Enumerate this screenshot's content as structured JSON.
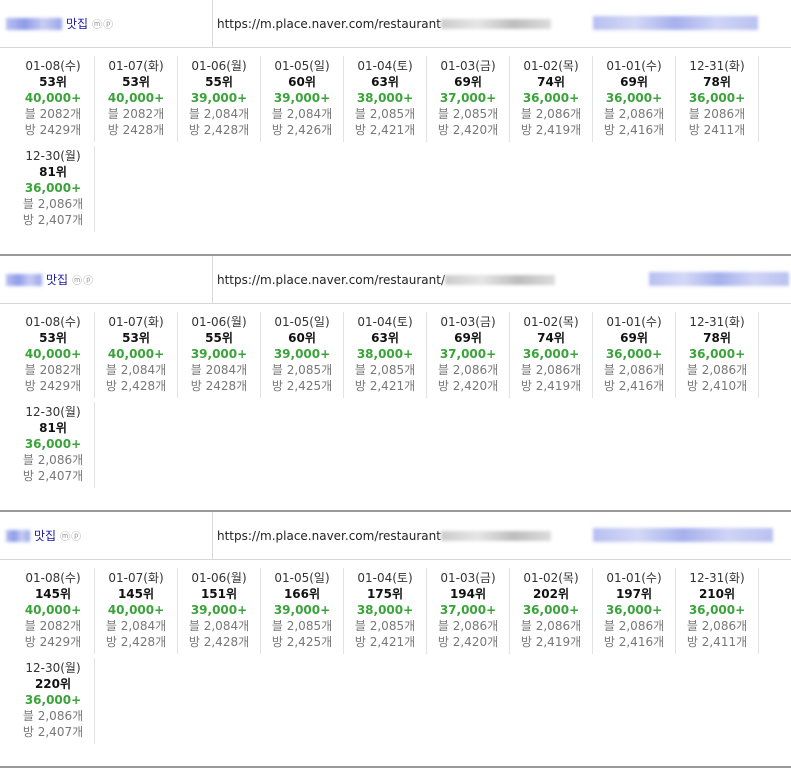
{
  "blocks": [
    {
      "keyword": "맛집",
      "icons": "ⓜⓟ",
      "url": "https://m.place.naver.com/restaurant",
      "days": [
        {
          "date": "01-08(수)",
          "rank": "53위",
          "rev": "40,000+",
          "blog": "블 2082개",
          "visit": "방 2429개"
        },
        {
          "date": "01-07(화)",
          "rank": "53위",
          "rev": "40,000+",
          "blog": "블 2082개",
          "visit": "방 2428개"
        },
        {
          "date": "01-06(월)",
          "rank": "55위",
          "rev": "39,000+",
          "blog": "블 2,084개",
          "visit": "방 2,428개"
        },
        {
          "date": "01-05(일)",
          "rank": "60위",
          "rev": "39,000+",
          "blog": "블 2,084개",
          "visit": "방 2,426개"
        },
        {
          "date": "01-04(토)",
          "rank": "63위",
          "rev": "38,000+",
          "blog": "블 2,085개",
          "visit": "방 2,421개"
        },
        {
          "date": "01-03(금)",
          "rank": "69위",
          "rev": "37,000+",
          "blog": "블 2,085개",
          "visit": "방 2,420개"
        },
        {
          "date": "01-02(목)",
          "rank": "74위",
          "rev": "36,000+",
          "blog": "블 2,086개",
          "visit": "방 2,419개"
        },
        {
          "date": "01-01(수)",
          "rank": "69위",
          "rev": "36,000+",
          "blog": "블 2,086개",
          "visit": "방 2,416개"
        },
        {
          "date": "12-31(화)",
          "rank": "78위",
          "rev": "36,000+",
          "blog": "블 2086개",
          "visit": "방 2411개"
        },
        {
          "date": "12-30(월)",
          "rank": "81위",
          "rev": "36,000+",
          "blog": "블 2,086개",
          "visit": "방 2,407개"
        }
      ]
    },
    {
      "keyword": "맛집",
      "icons": "ⓜⓟ",
      "url": "https://m.place.naver.com/restaurant/",
      "days": [
        {
          "date": "01-08(수)",
          "rank": "53위",
          "rev": "40,000+",
          "blog": "블 2082개",
          "visit": "방 2429개"
        },
        {
          "date": "01-07(화)",
          "rank": "53위",
          "rev": "40,000+",
          "blog": "블 2,084개",
          "visit": "방 2,428개"
        },
        {
          "date": "01-06(월)",
          "rank": "55위",
          "rev": "39,000+",
          "blog": "블 2084개",
          "visit": "방 2428개"
        },
        {
          "date": "01-05(일)",
          "rank": "60위",
          "rev": "39,000+",
          "blog": "블 2,085개",
          "visit": "방 2,425개"
        },
        {
          "date": "01-04(토)",
          "rank": "63위",
          "rev": "38,000+",
          "blog": "블 2,085개",
          "visit": "방 2,421개"
        },
        {
          "date": "01-03(금)",
          "rank": "69위",
          "rev": "37,000+",
          "blog": "블 2,086개",
          "visit": "방 2,420개"
        },
        {
          "date": "01-02(목)",
          "rank": "74위",
          "rev": "36,000+",
          "blog": "블 2,086개",
          "visit": "방 2,419개"
        },
        {
          "date": "01-01(수)",
          "rank": "69위",
          "rev": "36,000+",
          "blog": "블 2,086개",
          "visit": "방 2,416개"
        },
        {
          "date": "12-31(화)",
          "rank": "78위",
          "rev": "36,000+",
          "blog": "블 2,086개",
          "visit": "방 2,410개"
        },
        {
          "date": "12-30(월)",
          "rank": "81위",
          "rev": "36,000+",
          "blog": "블 2,086개",
          "visit": "방 2,407개"
        }
      ]
    },
    {
      "keyword": "맛집",
      "icons": "ⓜⓟ",
      "url": "https://m.place.naver.com/restaurant",
      "days": [
        {
          "date": "01-08(수)",
          "rank": "145위",
          "rev": "40,000+",
          "blog": "블 2082개",
          "visit": "방 2429개"
        },
        {
          "date": "01-07(화)",
          "rank": "145위",
          "rev": "40,000+",
          "blog": "블 2,084개",
          "visit": "방 2,428개"
        },
        {
          "date": "01-06(월)",
          "rank": "151위",
          "rev": "39,000+",
          "blog": "블 2,084개",
          "visit": "방 2,428개"
        },
        {
          "date": "01-05(일)",
          "rank": "166위",
          "rev": "39,000+",
          "blog": "블 2,085개",
          "visit": "방 2,425개"
        },
        {
          "date": "01-04(토)",
          "rank": "175위",
          "rev": "38,000+",
          "blog": "블 2,085개",
          "visit": "방 2,421개"
        },
        {
          "date": "01-03(금)",
          "rank": "194위",
          "rev": "37,000+",
          "blog": "블 2,086개",
          "visit": "방 2,420개"
        },
        {
          "date": "01-02(목)",
          "rank": "202위",
          "rev": "36,000+",
          "blog": "블 2,086개",
          "visit": "방 2,419개"
        },
        {
          "date": "01-01(수)",
          "rank": "197위",
          "rev": "36,000+",
          "blog": "블 2,086개",
          "visit": "방 2,416개"
        },
        {
          "date": "12-31(화)",
          "rank": "210위",
          "rev": "36,000+",
          "blog": "블 2,086개",
          "visit": "방 2,411개"
        },
        {
          "date": "12-30(월)",
          "rank": "220위",
          "rev": "36,000+",
          "blog": "블 2,086개",
          "visit": "방 2,407개"
        }
      ]
    }
  ]
}
